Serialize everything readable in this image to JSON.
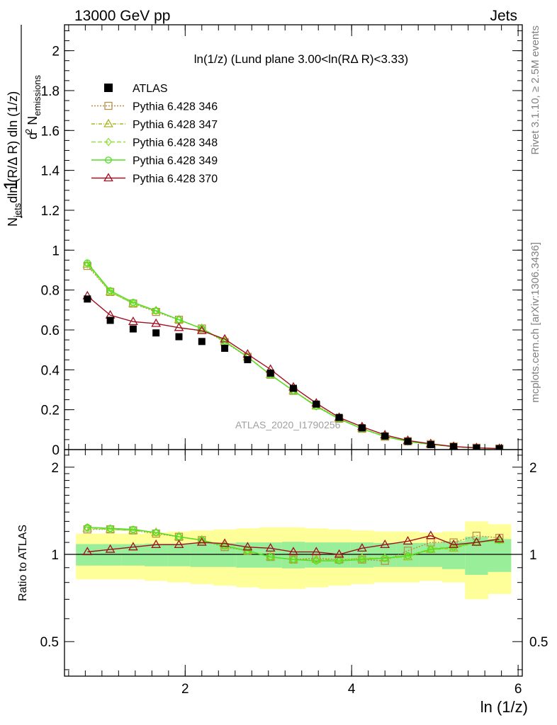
{
  "header": {
    "left": "13000 GeV pp",
    "right": "Jets",
    "side_top": "Rivet 3.1.10, ≥ 2.5M events",
    "side_bottom": "mcplots.cern.ch [arXiv:1306.3436]",
    "analysis_id": "ATLAS_2020_I1790256"
  },
  "chart_data": {
    "type": "line",
    "title": "ln(1/z) (Lund plane 3.00<ln(RΔ R)<3.33)",
    "xlabel": "ln (1/z)",
    "ylabel": "1/N_jets dln (R/Δ R) dln (1/z) · d² N_emissions",
    "ratio_ylabel": "Ratio to ATLAS",
    "xlim": [
      0.55,
      6.05
    ],
    "ylim": [
      0,
      2.13
    ],
    "ratio_ylim": [
      0.38,
      2.3
    ],
    "ratio_scale": "log",
    "legend_position": "top-left",
    "x_ticks": [
      2,
      4,
      6
    ],
    "y_ticks": [
      0,
      0.2,
      0.4,
      0.6,
      0.8,
      1,
      1.2,
      1.4,
      1.6,
      1.8,
      2
    ],
    "ratio_ticks": [
      0.5,
      1,
      2
    ],
    "x": [
      0.825,
      1.1,
      1.375,
      1.65,
      1.925,
      2.2,
      2.475,
      2.75,
      3.025,
      3.3,
      3.575,
      3.85,
      4.125,
      4.4,
      4.675,
      4.95,
      5.225,
      5.5,
      5.775
    ],
    "data": {
      "name": "ATLAS",
      "values": [
        0.755,
        0.648,
        0.605,
        0.585,
        0.566,
        0.542,
        0.508,
        0.451,
        0.383,
        0.307,
        0.228,
        0.161,
        0.109,
        0.068,
        0.041,
        0.025,
        0.014,
        0.008,
        0.0045
      ]
    },
    "band_inner_half": [
      0.085,
      0.085,
      0.085,
      0.09,
      0.09,
      0.095,
      0.095,
      0.1,
      0.1,
      0.105,
      0.1,
      0.1,
      0.1,
      0.095,
      0.095,
      0.095,
      0.11,
      0.15,
      0.13
    ],
    "band_outer_half": [
      0.18,
      0.18,
      0.18,
      0.19,
      0.2,
      0.21,
      0.22,
      0.23,
      0.24,
      0.24,
      0.23,
      0.22,
      0.21,
      0.2,
      0.2,
      0.19,
      0.2,
      0.3,
      0.27
    ],
    "series": [
      {
        "name": "Pythia 6.428 346",
        "color": "#b8904a",
        "dash": "2,2",
        "marker": "square",
        "ratio": [
          1.22,
          1.22,
          1.21,
          1.18,
          1.15,
          1.12,
          1.06,
          1.03,
          0.98,
          0.96,
          0.97,
          0.96,
          0.96,
          0.95,
          1.03,
          1.1,
          1.1,
          1.16,
          1.14
        ]
      },
      {
        "name": "Pythia 6.428 347",
        "color": "#a8b820",
        "dash": "5,2,1,2",
        "marker": "triangle",
        "ratio": [
          1.23,
          1.22,
          1.21,
          1.19,
          1.15,
          1.12,
          1.07,
          1.03,
          0.98,
          0.96,
          0.96,
          0.96,
          0.97,
          0.97,
          0.98,
          1.04,
          1.05,
          1.1,
          1.12
        ]
      },
      {
        "name": "Pythia 6.428 348",
        "color": "#90e040",
        "dash": "6,3",
        "marker": "diamond",
        "ratio": [
          1.23,
          1.22,
          1.21,
          1.19,
          1.15,
          1.12,
          1.07,
          1.03,
          0.98,
          0.96,
          0.95,
          0.96,
          0.97,
          0.97,
          0.98,
          1.05,
          1.06,
          1.1,
          1.12
        ]
      },
      {
        "name": "Pythia 6.428 349",
        "color": "#50e020",
        "dash": "",
        "marker": "circle",
        "ratio": [
          1.24,
          1.23,
          1.22,
          1.19,
          1.15,
          1.12,
          1.07,
          1.03,
          0.98,
          0.96,
          0.95,
          0.95,
          0.96,
          0.97,
          0.99,
          1.04,
          1.06,
          1.1,
          1.12
        ]
      },
      {
        "name": "Pythia 6.428 370",
        "color": "#a01020",
        "dash": "",
        "marker": "triangle",
        "ratio": [
          1.02,
          1.04,
          1.06,
          1.08,
          1.08,
          1.1,
          1.09,
          1.06,
          1.05,
          1.02,
          1.02,
          1.0,
          1.05,
          1.08,
          1.11,
          1.16,
          1.08,
          1.1,
          1.13
        ]
      }
    ]
  }
}
